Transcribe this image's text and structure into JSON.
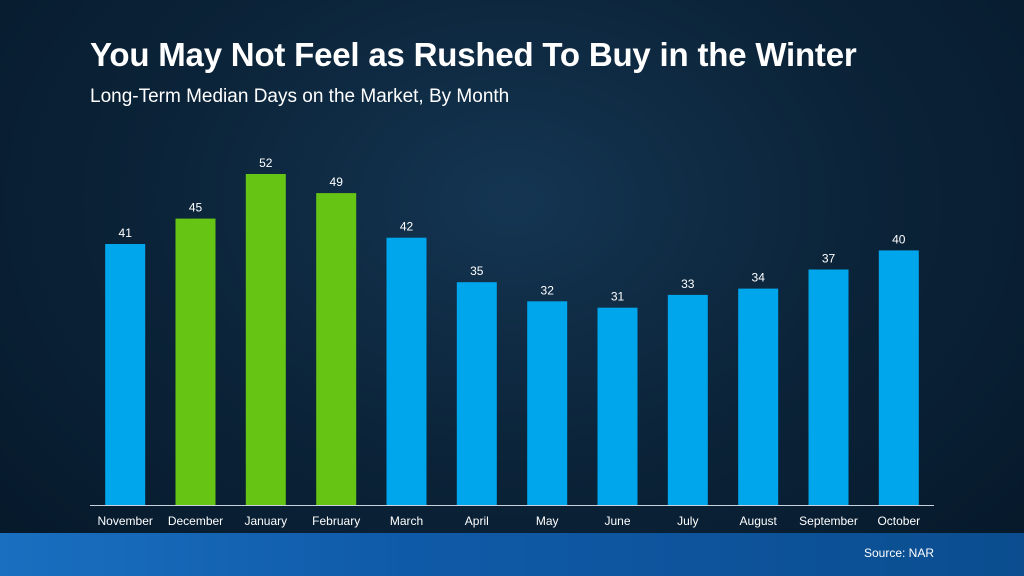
{
  "header": {
    "title": "You May Not Feel as Rushed To Buy in the Winter",
    "subtitle": "Long-Term Median Days on the Market, By Month"
  },
  "footer": {
    "source": "Source: NAR"
  },
  "colors": {
    "default_bar": "#00a6ec",
    "highlight_bar": "#66c414",
    "axis_line": "#c8d2dc"
  },
  "chart_data": {
    "type": "bar",
    "title": "You May Not Feel as Rushed To Buy in the Winter",
    "subtitle": "Long-Term Median Days on the Market, By Month",
    "xlabel": "",
    "ylabel": "",
    "categories": [
      "November",
      "December",
      "January",
      "February",
      "March",
      "April",
      "May",
      "June",
      "July",
      "August",
      "September",
      "October"
    ],
    "values": [
      41,
      45,
      52,
      49,
      42,
      35,
      32,
      31,
      33,
      34,
      37,
      40
    ],
    "highlighted": [
      "December",
      "January",
      "February"
    ],
    "ylim": [
      0,
      52
    ],
    "grid": false,
    "legend": "none",
    "data_labels": true
  }
}
